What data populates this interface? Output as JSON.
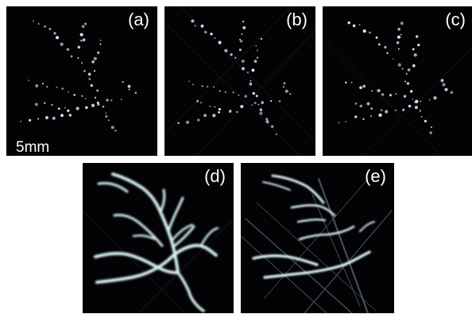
{
  "figure": {
    "panels": [
      {
        "label": "(a)",
        "kind": "sparse"
      },
      {
        "label": "(b)",
        "kind": "sparse"
      },
      {
        "label": "(c)",
        "kind": "sparse"
      },
      {
        "label": "(d)",
        "kind": "vessels"
      },
      {
        "label": "(e)",
        "kind": "vessels-artifacts"
      }
    ],
    "scale_bar": {
      "text": "5mm"
    },
    "colors": {
      "background": "#030305",
      "signal": "#d8f2f4",
      "artifact": "#5a6a72"
    }
  }
}
